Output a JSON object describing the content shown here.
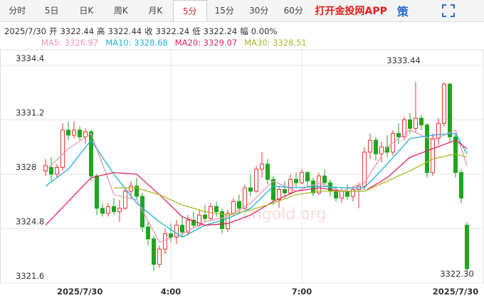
{
  "header": {
    "tabs": [
      "分时",
      "5日",
      "日K",
      "周K",
      "月K",
      "5分",
      "15分",
      "30分",
      "60分"
    ],
    "selected_tab": 5,
    "app_link": "打开金投网APP",
    "strategy": "策",
    "info_date": "2025/7/30",
    "info_items": [
      [
        "开",
        "3322.44"
      ],
      [
        "高",
        "3322.44"
      ],
      [
        "收",
        "3322.24"
      ],
      [
        "低",
        "3322.24"
      ],
      [
        "幅",
        "0.00%"
      ]
    ]
  },
  "chart_data": {
    "type": "candlestick",
    "watermark": "cngold.org",
    "up_color": "#e8352f",
    "down_color": "#1ea61e",
    "xlim": [
      -0.5,
      74.5
    ],
    "ylim": [
      3321.6,
      3334.4
    ],
    "yticks": [
      3334.4,
      3331.2,
      3328,
      3324.8,
      3321.6
    ],
    "xticks": [
      {
        "value": 2,
        "label": "2025/7/30"
      },
      {
        "value": 22,
        "label": "4:00"
      },
      {
        "value": 45,
        "label": "7:00"
      },
      {
        "value": 72,
        "label": "2025/7/30"
      }
    ],
    "grid": true,
    "high_label": "3333.44",
    "low_label": "3322.30",
    "candles": [
      [
        3328.2,
        3328.9,
        3327.9,
        3328.5
      ],
      [
        3328.4,
        3329.0,
        3327.6,
        3328.0
      ],
      [
        3328.0,
        3328.6,
        3327.8,
        3328.4
      ],
      [
        3328.4,
        3331.0,
        3328.2,
        3330.6
      ],
      [
        3330.6,
        3331.1,
        3330.0,
        3330.3
      ],
      [
        3330.3,
        3331.1,
        3330.1,
        3330.6
      ],
      [
        3330.6,
        3330.8,
        3330.0,
        3330.2
      ],
      [
        3330.2,
        3330.7,
        3329.8,
        3330.5
      ],
      [
        3330.5,
        3330.6,
        3327.6,
        3327.9
      ],
      [
        3327.9,
        3328.0,
        3325.6,
        3326.0
      ],
      [
        3326.0,
        3326.3,
        3325.5,
        3325.7
      ],
      [
        3325.7,
        3326.3,
        3325.5,
        3326.1
      ],
      [
        3326.1,
        3326.6,
        3325.6,
        3325.8
      ],
      [
        3325.8,
        3326.5,
        3325.2,
        3326.0
      ],
      [
        3326.0,
        3327.2,
        3325.9,
        3327.0
      ],
      [
        3327.0,
        3327.6,
        3326.6,
        3327.3
      ],
      [
        3327.3,
        3327.8,
        3326.5,
        3326.7
      ],
      [
        3326.7,
        3326.9,
        3324.6,
        3324.9
      ],
      [
        3324.9,
        3325.2,
        3323.8,
        3324.2
      ],
      [
        3324.2,
        3324.4,
        3322.3,
        3322.7
      ],
      [
        3322.7,
        3323.8,
        3322.5,
        3323.6
      ],
      [
        3323.6,
        3324.8,
        3323.3,
        3324.5
      ],
      [
        3324.5,
        3325.1,
        3324.0,
        3324.3
      ],
      [
        3324.3,
        3325.3,
        3323.9,
        3325.0
      ],
      [
        3325.0,
        3325.5,
        3324.3,
        3324.6
      ],
      [
        3324.6,
        3325.6,
        3324.4,
        3325.3
      ],
      [
        3325.3,
        3325.8,
        3324.8,
        3325.0
      ],
      [
        3325.0,
        3325.9,
        3324.9,
        3325.6
      ],
      [
        3325.6,
        3326.2,
        3325.2,
        3325.4
      ],
      [
        3325.4,
        3326.3,
        3325.3,
        3326.1
      ],
      [
        3326.1,
        3326.4,
        3325.5,
        3325.8
      ],
      [
        3325.8,
        3326.0,
        3324.5,
        3324.8
      ],
      [
        3324.8,
        3325.9,
        3324.6,
        3325.7
      ],
      [
        3325.7,
        3326.6,
        3325.5,
        3326.4
      ],
      [
        3326.4,
        3326.8,
        3325.7,
        3326.0
      ],
      [
        3326.0,
        3327.4,
        3325.9,
        3327.2
      ],
      [
        3327.2,
        3328.0,
        3326.7,
        3327.0
      ],
      [
        3327.0,
        3328.5,
        3326.9,
        3328.3
      ],
      [
        3328.3,
        3329.3,
        3327.8,
        3328.6
      ],
      [
        3328.6,
        3328.9,
        3327.4,
        3327.7
      ],
      [
        3327.7,
        3327.9,
        3326.2,
        3326.5
      ],
      [
        3326.5,
        3327.3,
        3326.0,
        3327.1
      ],
      [
        3327.1,
        3327.6,
        3326.6,
        3326.9
      ],
      [
        3326.9,
        3328.0,
        3326.8,
        3327.7
      ],
      [
        3327.7,
        3328.1,
        3327.2,
        3327.5
      ],
      [
        3327.5,
        3328.3,
        3327.4,
        3328.1
      ],
      [
        3328.1,
        3328.2,
        3327.3,
        3327.6
      ],
      [
        3327.6,
        3327.8,
        3326.7,
        3326.9
      ],
      [
        3326.9,
        3328.1,
        3326.8,
        3327.9
      ],
      [
        3327.9,
        3328.3,
        3327.3,
        3327.5
      ],
      [
        3327.5,
        3327.7,
        3326.7,
        3327.0
      ],
      [
        3327.0,
        3327.3,
        3326.4,
        3326.6
      ],
      [
        3326.6,
        3327.2,
        3326.3,
        3327.0
      ],
      [
        3327.0,
        3327.4,
        3326.5,
        3326.7
      ],
      [
        3326.7,
        3327.3,
        3326.4,
        3327.1
      ],
      [
        3327.1,
        3327.5,
        3326.0,
        3327.3
      ],
      [
        3327.3,
        3329.6,
        3327.1,
        3329.3
      ],
      [
        3329.3,
        3330.4,
        3328.9,
        3330.0
      ],
      [
        3330.0,
        3330.2,
        3328.8,
        3329.2
      ],
      [
        3329.2,
        3329.9,
        3328.7,
        3329.6
      ],
      [
        3329.6,
        3330.3,
        3329.0,
        3329.3
      ],
      [
        3329.3,
        3330.6,
        3329.1,
        3330.4
      ],
      [
        3330.4,
        3331.0,
        3329.8,
        3330.2
      ],
      [
        3330.2,
        3331.4,
        3330.0,
        3331.2
      ],
      [
        3331.2,
        3331.6,
        3330.4,
        3330.7
      ],
      [
        3330.7,
        3333.44,
        3330.5,
        3331.3
      ],
      [
        3331.3,
        3331.5,
        3330.6,
        3330.9
      ],
      [
        3330.9,
        3331.0,
        3327.8,
        3328.1
      ],
      [
        3328.1,
        3330.4,
        3327.9,
        3330.1
      ],
      [
        3330.1,
        3331.3,
        3329.7,
        3331.0
      ],
      [
        3331.0,
        3333.4,
        3330.8,
        3333.3
      ],
      [
        3333.3,
        3333.4,
        3329.9,
        3330.2
      ],
      [
        3330.2,
        3330.4,
        3327.8,
        3328.1
      ],
      [
        3328.1,
        3328.3,
        3326.3,
        3326.6
      ],
      [
        3325.0,
        3325.2,
        3322.3,
        3322.44
      ]
    ],
    "series": [
      {
        "name": "MA5: 3326.97",
        "color": "#ee95b5",
        "x": [
          0,
          4,
          8,
          12,
          16,
          20,
          24,
          28,
          32,
          36,
          40,
          44,
          48,
          52,
          56,
          60,
          64,
          68,
          72,
          74
        ],
        "values": [
          3328.2,
          3329.5,
          3330.4,
          3326.8,
          3326.5,
          3324.0,
          3324.5,
          3325.2,
          3325.5,
          3326.3,
          3327.6,
          3327.0,
          3327.5,
          3327.0,
          3327.5,
          3329.6,
          3330.6,
          3330.0,
          3330.6,
          3328.5
        ]
      },
      {
        "name": "MA10: 3328.68",
        "color": "#1fb0d6",
        "x": [
          0,
          4,
          8,
          12,
          16,
          20,
          24,
          28,
          32,
          36,
          40,
          44,
          48,
          52,
          56,
          60,
          64,
          68,
          72,
          74
        ],
        "values": [
          3327.3,
          3328.3,
          3330.0,
          3328.0,
          3326.3,
          3325.2,
          3324.3,
          3325.0,
          3325.4,
          3326.0,
          3327.3,
          3327.2,
          3327.3,
          3327.2,
          3327.2,
          3328.6,
          3330.1,
          3330.3,
          3330.4,
          3329.2
        ]
      },
      {
        "name": "MA20: 3329.07",
        "color": "#e0245e",
        "x": [
          0,
          4,
          8,
          12,
          16,
          20,
          24,
          28,
          32,
          36,
          40,
          44,
          48,
          52,
          56,
          60,
          64,
          68,
          72,
          74
        ],
        "values": [
          3325.0,
          3326.4,
          3327.8,
          3328.1,
          3328.0,
          3326.8,
          3325.5,
          3325.0,
          3325.1,
          3325.6,
          3326.4,
          3327.0,
          3327.2,
          3327.0,
          3327.0,
          3327.8,
          3329.0,
          3329.5,
          3330.0,
          3329.5
        ]
      },
      {
        "name": "MA30: 3328.51",
        "color": "#a9b825",
        "x": [
          12,
          16,
          20,
          24,
          28,
          32,
          36,
          40,
          44,
          48,
          52,
          56,
          60,
          64,
          68,
          72,
          74
        ],
        "values": [
          3327.2,
          3327.2,
          3326.8,
          3326.2,
          3325.8,
          3325.6,
          3325.9,
          3326.3,
          3326.8,
          3327.0,
          3327.0,
          3327.0,
          3327.6,
          3328.2,
          3328.9,
          3329.2,
          3329.0
        ]
      }
    ]
  }
}
